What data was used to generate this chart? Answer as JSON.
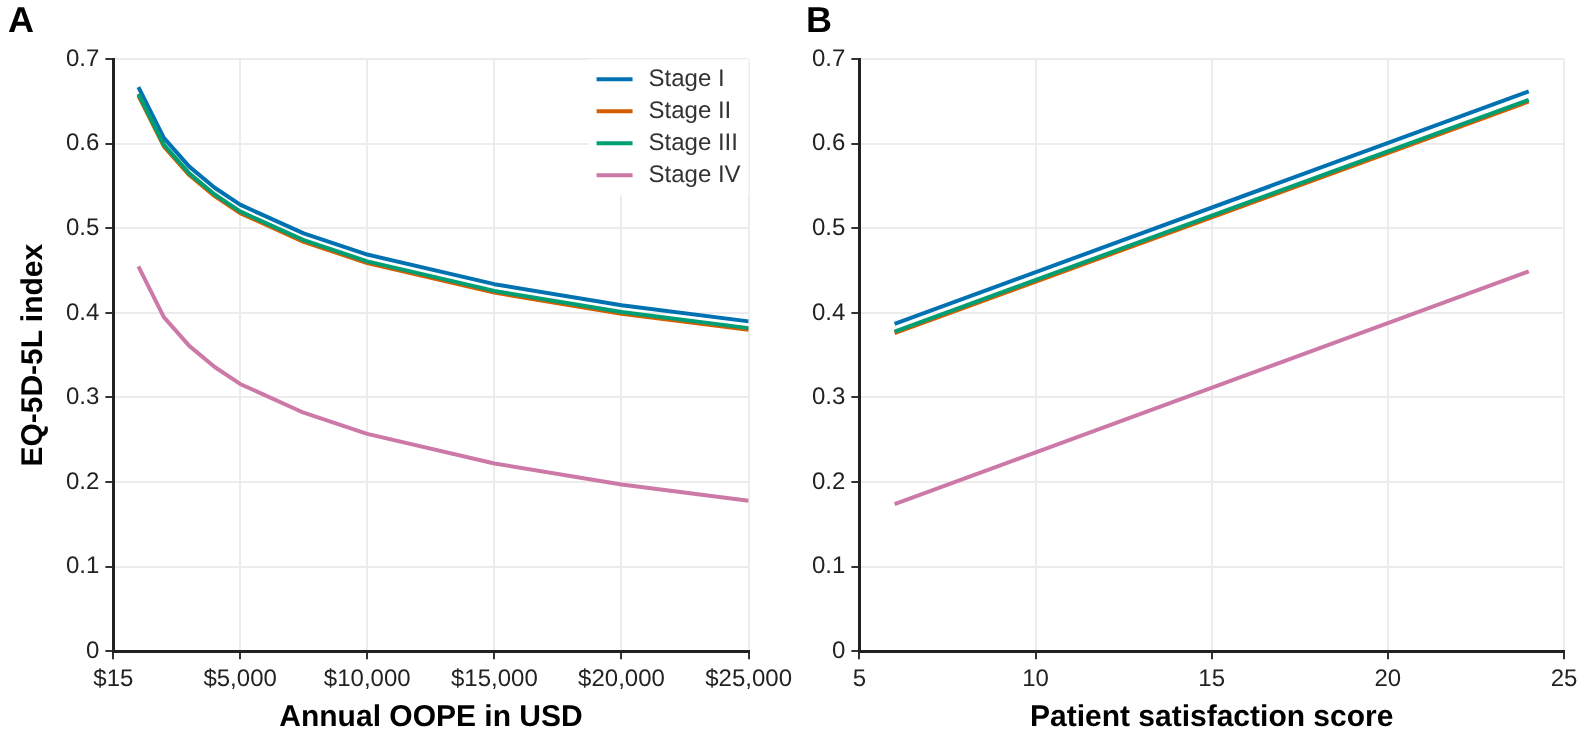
{
  "chart_data": [
    {
      "type": "line",
      "title": "A",
      "xlabel": "Annual OOPE in USD",
      "ylabel": "EQ-5D-5L index",
      "x": [
        1000,
        2000,
        3000,
        4000,
        5000,
        7500,
        10000,
        15000,
        20000,
        25000
      ],
      "series": [
        {
          "name": "Stage I",
          "color": "#0072b2",
          "values": [
            0.667,
            0.607,
            0.573,
            0.548,
            0.528,
            0.494,
            0.469,
            0.434,
            0.409,
            0.39
          ]
        },
        {
          "name": "Stage II",
          "color": "#d55e00",
          "values": [
            0.657,
            0.597,
            0.563,
            0.538,
            0.518,
            0.484,
            0.459,
            0.424,
            0.399,
            0.38
          ]
        },
        {
          "name": "Stage III",
          "color": "#009e73",
          "values": [
            0.659,
            0.599,
            0.565,
            0.54,
            0.52,
            0.486,
            0.461,
            0.426,
            0.401,
            0.382
          ]
        },
        {
          "name": "Stage IV",
          "color": "#cc79a7",
          "values": [
            0.455,
            0.395,
            0.361,
            0.336,
            0.316,
            0.282,
            0.257,
            0.222,
            0.197,
            0.178
          ]
        }
      ],
      "xlim": [
        15,
        25000
      ],
      "xticks": [
        {
          "value": 15,
          "label": "$15"
        },
        {
          "value": 5000,
          "label": "$5,000"
        },
        {
          "value": 10000,
          "label": "$10,000"
        },
        {
          "value": 15000,
          "label": "$15,000"
        },
        {
          "value": 20000,
          "label": "$20,000"
        },
        {
          "value": 25000,
          "label": "$25,000"
        }
      ],
      "ylim": [
        0,
        0.7
      ],
      "yticks": [
        0,
        0.1,
        0.2,
        0.3,
        0.4,
        0.5,
        0.6,
        0.7
      ],
      "grid": true,
      "legend": "top right",
      "marker": "none",
      "line_style": "solid"
    },
    {
      "type": "line",
      "title": "B",
      "xlabel": "Patient satisfaction score",
      "x": [
        6,
        24
      ],
      "series": [
        {
          "color": "#0072b2",
          "values": [
            0.387,
            0.662
          ]
        },
        {
          "color": "#d55e00",
          "values": [
            0.376,
            0.65
          ]
        },
        {
          "color": "#009e73",
          "values": [
            0.378,
            0.652
          ]
        },
        {
          "color": "#cc79a7",
          "values": [
            0.174,
            0.449
          ]
        }
      ],
      "xlim": [
        5,
        25
      ],
      "xticks": [
        5,
        10,
        15,
        20,
        25
      ],
      "ylim": [
        0,
        0.7
      ],
      "yticks": [
        0,
        0.1,
        0.2,
        0.3,
        0.4,
        0.5,
        0.6,
        0.7
      ],
      "grid": true,
      "legend": false,
      "marker": "none",
      "line_style": "solid"
    }
  ]
}
